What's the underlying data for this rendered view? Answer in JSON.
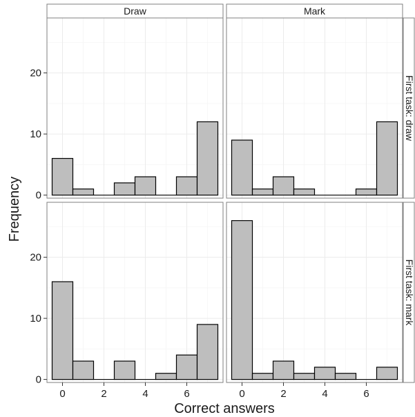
{
  "chart_data": {
    "type": "bar",
    "xlabel": "Correct answers",
    "ylabel": "Frequency",
    "column_labels": [
      "Draw",
      "Mark"
    ],
    "row_labels": [
      "First task: draw",
      "First task: mark"
    ],
    "bins": [
      [
        -0.5,
        0.5
      ],
      [
        0.5,
        1.5
      ],
      [
        1.5,
        2.5
      ],
      [
        2.5,
        3.5
      ],
      [
        3.5,
        4.5
      ],
      [
        4.5,
        5.5
      ],
      [
        5.5,
        6.5
      ],
      [
        6.5,
        7.5
      ]
    ],
    "xlim": [
      -0.75,
      7.75
    ],
    "xticks": [
      0,
      2,
      4,
      6
    ],
    "ylim": [
      -0.5,
      29
    ],
    "yticks": [
      0,
      10,
      20
    ],
    "grid": true,
    "bar_color": "#bebebe",
    "panel_background": "#ffffff",
    "grid_color": "#ebebeb",
    "panels": [
      {
        "row": 0,
        "col": 0,
        "values": [
          6,
          1,
          0,
          2,
          3,
          0,
          3,
          12
        ]
      },
      {
        "row": 0,
        "col": 1,
        "values": [
          9,
          1,
          3,
          1,
          0,
          0,
          1,
          12
        ]
      },
      {
        "row": 1,
        "col": 0,
        "values": [
          16,
          3,
          0,
          3,
          0,
          1,
          4,
          9
        ]
      },
      {
        "row": 1,
        "col": 1,
        "values": [
          26,
          1,
          3,
          1,
          2,
          1,
          0,
          2
        ]
      }
    ]
  }
}
